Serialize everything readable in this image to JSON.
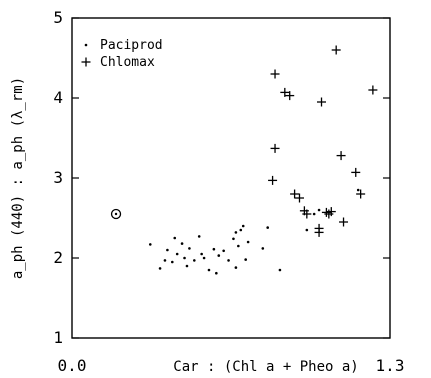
{
  "chart_data": {
    "type": "scatter",
    "title": "",
    "xlabel": "Car : (Chl a + Pheo a)",
    "ylabel": "a_ph (440) : a_ph (λ_rm)",
    "xlim": [
      0.0,
      1.3
    ],
    "ylim": [
      1,
      5
    ],
    "x_tick_labels": [
      "0.0",
      "1.3"
    ],
    "y_tick_labels": [
      "1",
      "2",
      "3",
      "4",
      "5"
    ],
    "grid": false,
    "legend_position": "top-left",
    "series": [
      {
        "name": "Paciprod",
        "marker": "dot",
        "points": [
          [
            0.32,
            2.17
          ],
          [
            0.36,
            1.87
          ],
          [
            0.38,
            1.97
          ],
          [
            0.39,
            2.1
          ],
          [
            0.41,
            1.95
          ],
          [
            0.42,
            2.25
          ],
          [
            0.43,
            2.05
          ],
          [
            0.45,
            2.18
          ],
          [
            0.46,
            2.0
          ],
          [
            0.47,
            1.9
          ],
          [
            0.48,
            2.12
          ],
          [
            0.5,
            1.97
          ],
          [
            0.52,
            2.27
          ],
          [
            0.53,
            2.05
          ],
          [
            0.54,
            2.0
          ],
          [
            0.56,
            1.85
          ],
          [
            0.58,
            2.11
          ],
          [
            0.59,
            1.81
          ],
          [
            0.6,
            2.03
          ],
          [
            0.62,
            2.09
          ],
          [
            0.64,
            1.97
          ],
          [
            0.66,
            2.24
          ],
          [
            0.67,
            2.32
          ],
          [
            0.67,
            1.88
          ],
          [
            0.68,
            2.15
          ],
          [
            0.69,
            2.35
          ],
          [
            0.7,
            2.4
          ],
          [
            0.71,
            1.98
          ],
          [
            0.72,
            2.2
          ],
          [
            0.78,
            2.12
          ],
          [
            0.8,
            2.38
          ],
          [
            0.85,
            1.85
          ],
          [
            0.96,
            2.35
          ],
          [
            0.99,
            2.55
          ],
          [
            1.01,
            2.6
          ],
          [
            1.17,
            2.85
          ]
        ]
      },
      {
        "name": "Chlomax",
        "marker": "plus",
        "points": [
          [
            0.82,
            2.97
          ],
          [
            0.83,
            3.37
          ],
          [
            0.83,
            4.3
          ],
          [
            0.87,
            4.07
          ],
          [
            0.89,
            4.03
          ],
          [
            0.91,
            2.8
          ],
          [
            0.93,
            2.75
          ],
          [
            0.95,
            2.59
          ],
          [
            0.96,
            2.55
          ],
          [
            1.01,
            2.37
          ],
          [
            1.01,
            2.32
          ],
          [
            1.02,
            3.95
          ],
          [
            1.04,
            2.57
          ],
          [
            1.05,
            2.55
          ],
          [
            1.06,
            2.58
          ],
          [
            1.08,
            4.6
          ],
          [
            1.1,
            3.28
          ],
          [
            1.11,
            2.45
          ],
          [
            1.16,
            3.07
          ],
          [
            1.18,
            2.8
          ],
          [
            1.23,
            4.1
          ]
        ]
      },
      {
        "name": "",
        "marker": "circled-dot",
        "points": [
          [
            0.18,
            2.55
          ]
        ]
      }
    ]
  }
}
